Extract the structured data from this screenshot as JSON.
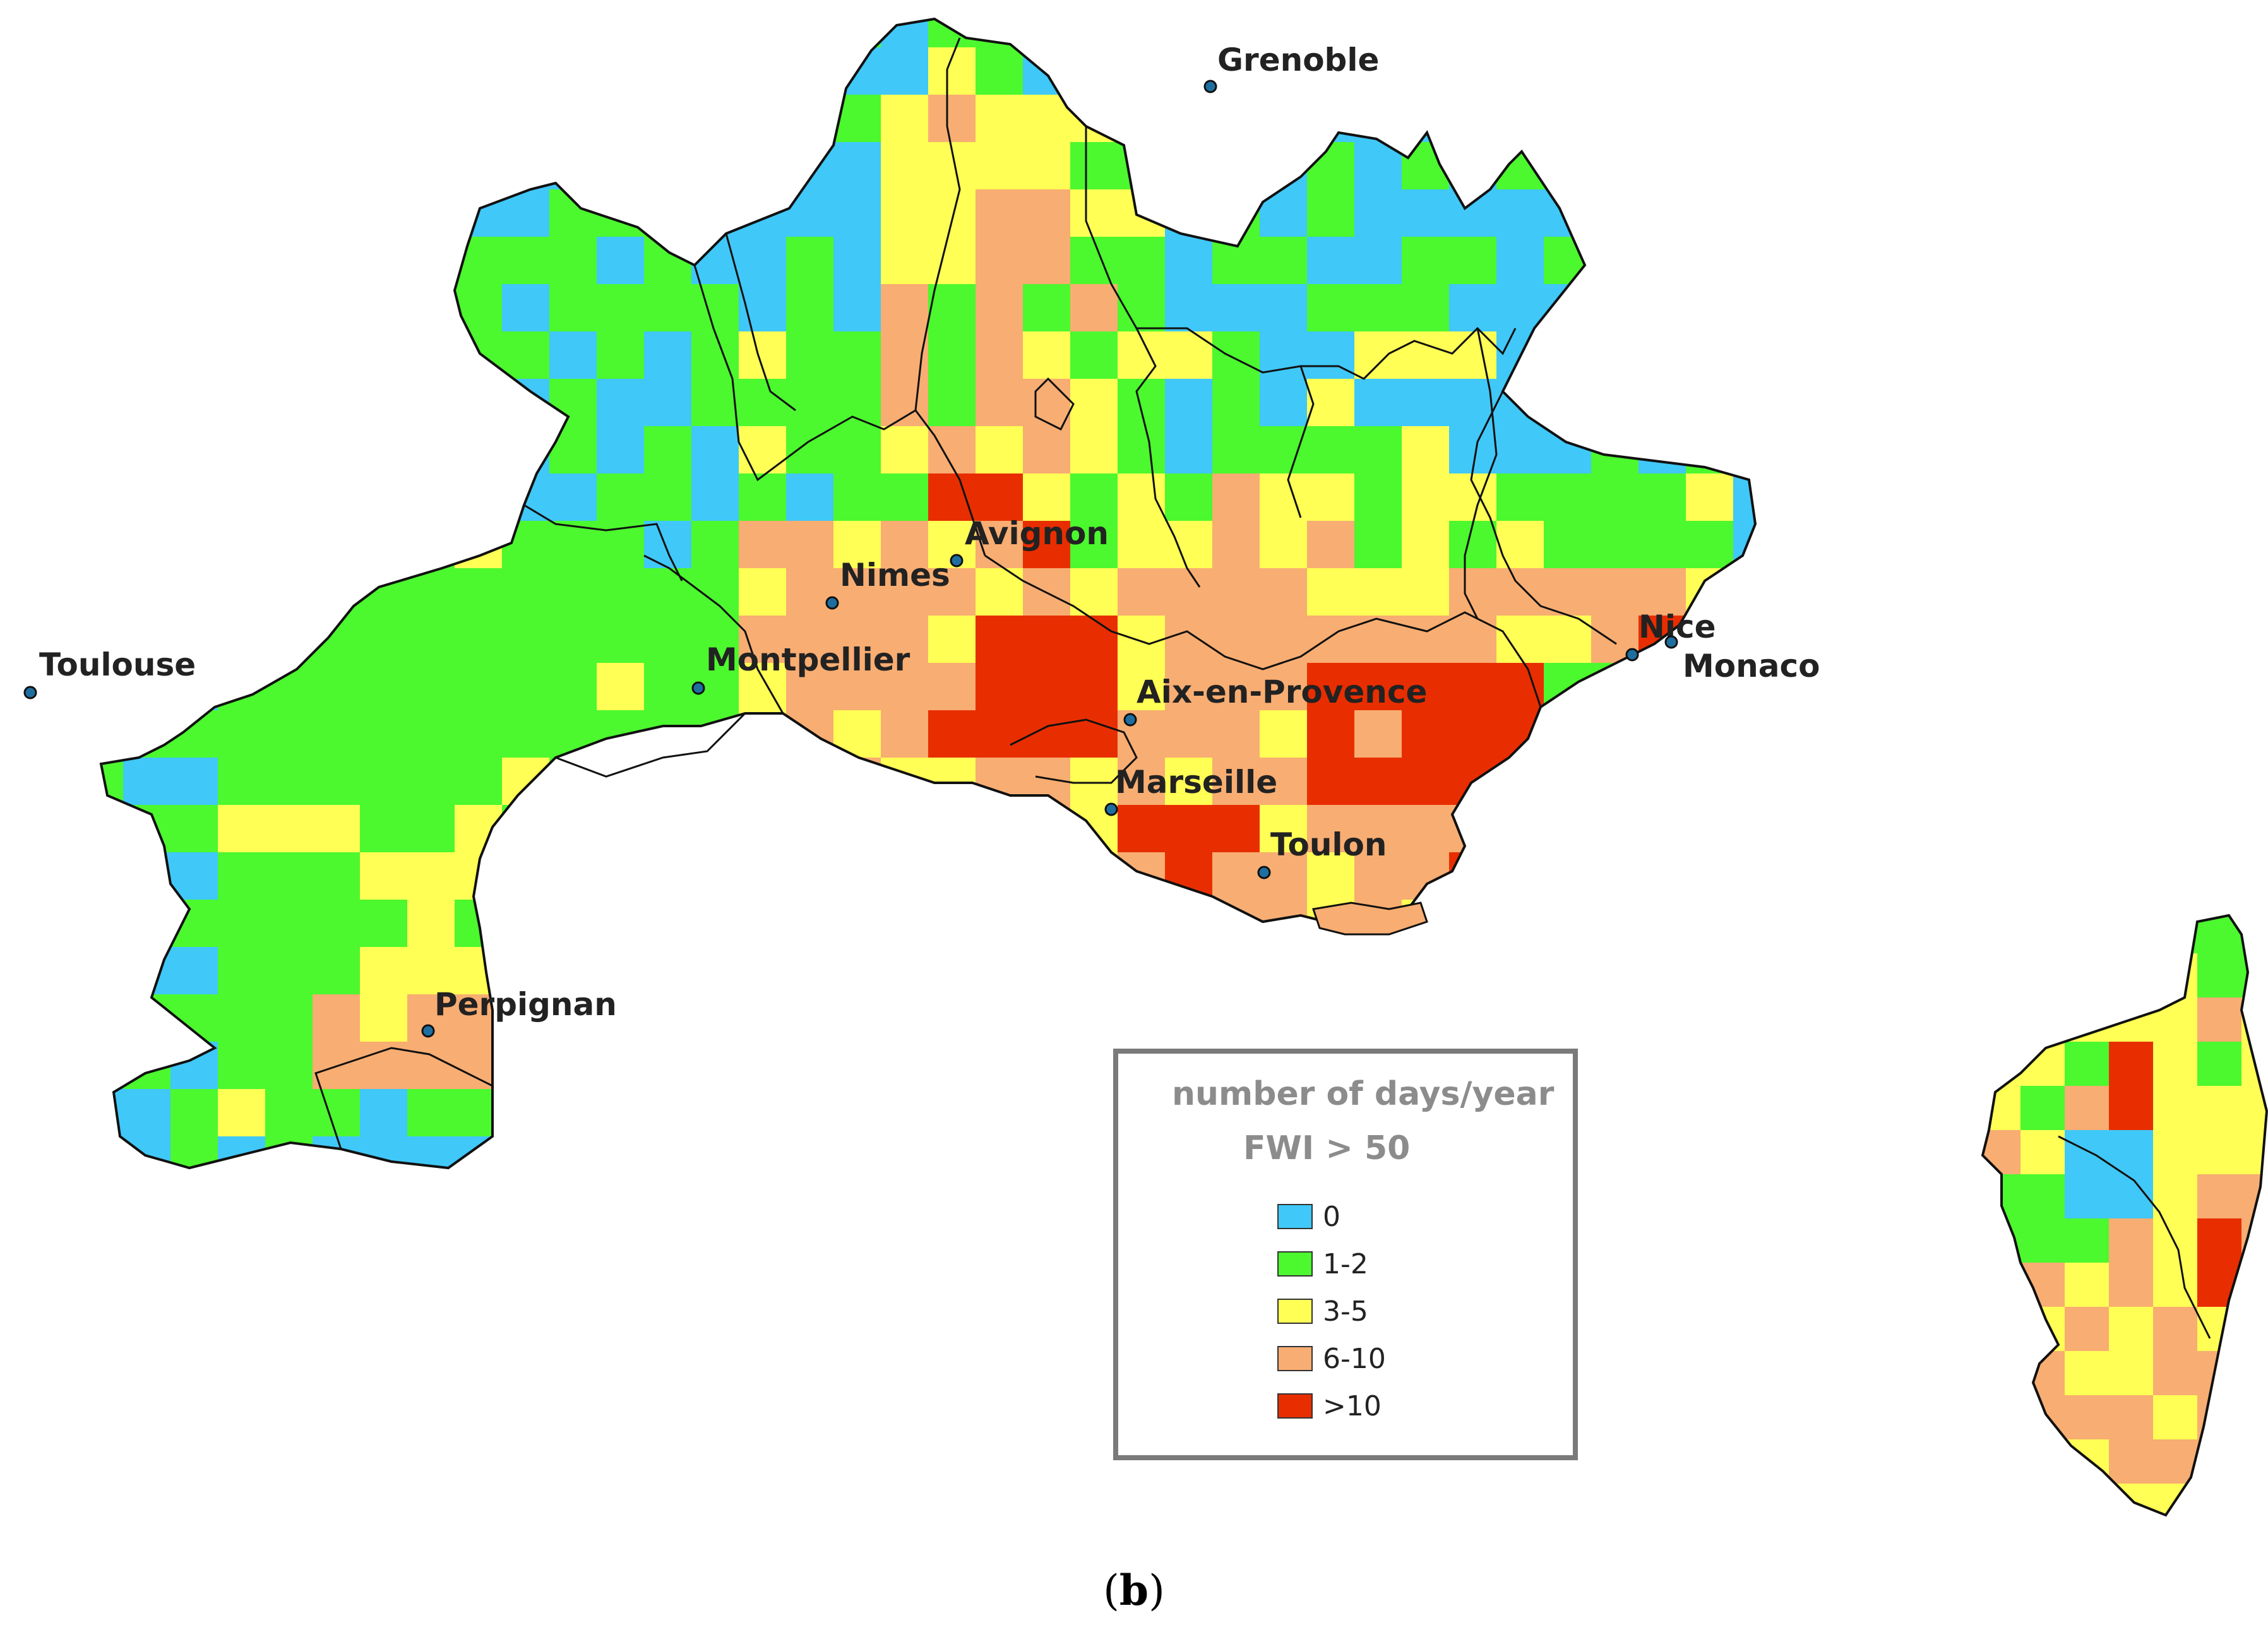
{
  "legend": {
    "title": "number of days/year",
    "subtitle": "FWI > 50",
    "classes": [
      {
        "label": "0",
        "color": "#40c8f8"
      },
      {
        "label": "1-2",
        "color": "#4cf82e"
      },
      {
        "label": "3-5",
        "color": "#ffff55"
      },
      {
        "label": "6-10",
        "color": "#f8ad72"
      },
      {
        "label": ">10",
        "color": "#e82e00"
      }
    ]
  },
  "cities": [
    {
      "name": "Grenoble"
    },
    {
      "name": "Toulouse"
    },
    {
      "name": "Montpellier"
    },
    {
      "name": "Nimes"
    },
    {
      "name": "Avignon"
    },
    {
      "name": "Aix-en-Provence"
    },
    {
      "name": "Marseille"
    },
    {
      "name": "Toulon"
    },
    {
      "name": "Nice"
    },
    {
      "name": "Monaco"
    },
    {
      "name": "Perpignan"
    }
  ],
  "caption": {
    "open": "(",
    "letter": "b",
    "close": ")"
  }
}
